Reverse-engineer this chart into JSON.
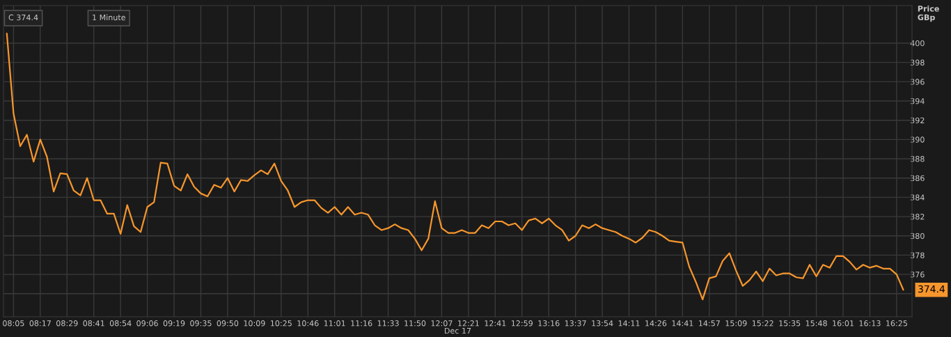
{
  "chart_data": {
    "type": "line",
    "ylabel": "Price\nGBp",
    "xlabel": "Dec 17",
    "annotations": [
      "C 374.4",
      "1 Minute"
    ],
    "categories": [
      null,
      "08:05",
      null,
      null,
      null,
      "08:17",
      null,
      null,
      null,
      "08:29",
      null,
      null,
      null,
      "08:41",
      null,
      null,
      null,
      "08:54",
      null,
      null,
      null,
      "09:06",
      null,
      null,
      null,
      "09:19",
      null,
      null,
      null,
      "09:35",
      null,
      null,
      null,
      "09:50",
      null,
      null,
      null,
      "10:09",
      null,
      null,
      null,
      "10:25",
      null,
      null,
      null,
      "10:46",
      null,
      null,
      null,
      "11:01",
      null,
      null,
      null,
      "11:16",
      null,
      null,
      null,
      "11:33",
      null,
      null,
      null,
      "11:50",
      null,
      null,
      null,
      "12:07",
      null,
      null,
      null,
      "12:21",
      null,
      null,
      null,
      "12:41",
      null,
      null,
      null,
      "12:59",
      null,
      null,
      null,
      "13:16",
      null,
      null,
      null,
      "13:37",
      null,
      null,
      null,
      "13:54",
      null,
      null,
      null,
      "14:11",
      null,
      null,
      null,
      "14:26",
      null,
      null,
      null,
      "14:41",
      null,
      null,
      null,
      "14:57",
      null,
      null,
      null,
      "15:09",
      null,
      null,
      null,
      "15:22",
      null,
      null,
      null,
      "15:35",
      null,
      null,
      null,
      "15:48",
      null,
      null,
      null,
      "16:01",
      null,
      null,
      null,
      "16:13",
      null,
      null,
      null,
      "16:25",
      null
    ],
    "series": [
      {
        "color": "#f7962d",
        "values": [
          401.0,
          392.7,
          389.3,
          390.5,
          387.7,
          390.0,
          388.2,
          384.6,
          386.5,
          386.4,
          384.7,
          384.2,
          386.0,
          383.7,
          383.7,
          382.3,
          382.3,
          380.2,
          383.2,
          381.0,
          380.4,
          383.0,
          383.5,
          387.6,
          387.5,
          385.2,
          384.7,
          386.4,
          385.1,
          384.4,
          384.1,
          385.3,
          385.0,
          386.0,
          384.6,
          385.8,
          385.7,
          386.3,
          386.8,
          386.4,
          387.5,
          385.7,
          384.7,
          383.0,
          383.5,
          383.7,
          383.7,
          382.9,
          382.4,
          383.0,
          382.2,
          383.0,
          382.2,
          382.4,
          382.2,
          381.1,
          380.6,
          380.8,
          381.2,
          380.8,
          380.6,
          379.7,
          378.5,
          379.7,
          383.6,
          380.8,
          380.3,
          380.3,
          380.6,
          380.3,
          380.3,
          381.1,
          380.8,
          381.5,
          381.5,
          381.1,
          381.3,
          380.6,
          381.6,
          381.8,
          381.3,
          381.8,
          381.1,
          380.6,
          379.5,
          380.0,
          381.1,
          380.8,
          381.2,
          380.8,
          380.6,
          380.4,
          380.0,
          379.7,
          379.3,
          379.8,
          380.6,
          380.4,
          380.0,
          379.5,
          379.4,
          379.3,
          376.8,
          375.2,
          373.4,
          375.6,
          375.8,
          377.4,
          378.2,
          376.4,
          374.8,
          375.4,
          376.3,
          375.3,
          376.6,
          375.9,
          376.1,
          376.1,
          375.7,
          375.6,
          377.0,
          375.8,
          377.0,
          376.7,
          377.9,
          377.9,
          377.3,
          376.5,
          377.0,
          376.7,
          376.9,
          376.6,
          376.6,
          376.0,
          374.4
        ],
        "value_labels": [
          null,
          null,
          null,
          null,
          null,
          null,
          null,
          null,
          null,
          null,
          null,
          null,
          null,
          null,
          null,
          null,
          null,
          null,
          null,
          null,
          null,
          null,
          null,
          null,
          null,
          null,
          null,
          null,
          null,
          null,
          null,
          null,
          null,
          null,
          null,
          null,
          null,
          null,
          null,
          null,
          null,
          null,
          null,
          null,
          null,
          null,
          null,
          null,
          null,
          null,
          null,
          null,
          null,
          null,
          null,
          null,
          null,
          null,
          null,
          null,
          null,
          null,
          null,
          null,
          null,
          null,
          null,
          null,
          null,
          null,
          null,
          null,
          null,
          null,
          null,
          null,
          null,
          null,
          null,
          null,
          null,
          null,
          null,
          null,
          null,
          null,
          null,
          null,
          null,
          null,
          null,
          null,
          null,
          null,
          null,
          null,
          null,
          null,
          null,
          null,
          null,
          null,
          null,
          null,
          null,
          null,
          null,
          null,
          null,
          null,
          null,
          null,
          null,
          null,
          null,
          null,
          null,
          null,
          null,
          null,
          null,
          null,
          null,
          null,
          null,
          null,
          null,
          null,
          null,
          null,
          null,
          null,
          null,
          null,
          "374.4"
        ]
      }
    ],
    "ylim": [
      371.6,
      403.9
    ],
    "yticks": [
      {
        "value": 374,
        "label": null
      },
      376,
      378,
      380,
      382,
      384,
      386,
      388,
      390,
      392,
      394,
      396,
      398,
      400
    ],
    "grid": true,
    "marker": "none",
    "line_style": "solid"
  }
}
